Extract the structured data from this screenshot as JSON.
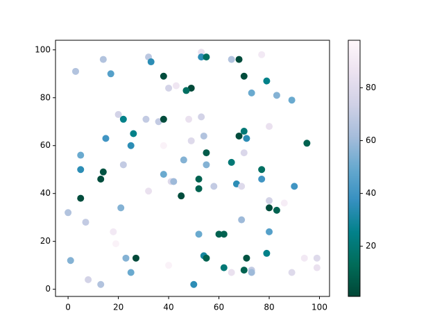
{
  "chart_data": {
    "type": "scatter",
    "x": [
      53,
      53,
      55,
      68,
      65,
      77,
      14,
      32,
      33,
      3,
      17,
      38,
      70,
      79,
      43,
      40,
      49,
      47,
      73,
      83,
      89,
      20,
      22,
      31,
      36,
      38,
      48,
      53,
      80,
      26,
      68,
      70,
      71,
      15,
      25,
      38,
      49,
      54,
      95,
      55,
      70,
      5,
      46,
      65,
      55,
      22,
      5,
      77,
      14,
      38,
      13,
      52,
      77,
      41,
      42,
      67,
      58,
      69,
      90,
      52,
      32,
      45,
      5,
      80,
      86,
      21,
      80,
      83,
      0,
      69,
      7,
      18,
      52,
      60,
      62,
      80,
      19,
      79,
      54,
      55,
      23,
      27,
      71,
      94,
      99,
      1,
      40,
      62,
      99,
      73,
      25,
      65,
      70,
      73,
      89,
      8,
      13,
      50
    ],
    "values": [
      99,
      97,
      97,
      96,
      96,
      98,
      96,
      97,
      95,
      91,
      90,
      89,
      89,
      87,
      85,
      84,
      84,
      83,
      82,
      81,
      79,
      73,
      71,
      71,
      70,
      71,
      71,
      72,
      68,
      65,
      64,
      66,
      63,
      63,
      60,
      60,
      62,
      64,
      61,
      57,
      57,
      56,
      54,
      53,
      52,
      52,
      50,
      50,
      49,
      48,
      46,
      46,
      46,
      45,
      45,
      44,
      43,
      43,
      43,
      42,
      41,
      39,
      38,
      37,
      36,
      34,
      34,
      33,
      32,
      29,
      28,
      24,
      23,
      23,
      23,
      24,
      19,
      15,
      14,
      13,
      13,
      13,
      13,
      13,
      13,
      12,
      10,
      9,
      9,
      8,
      7,
      7,
      8,
      7,
      7,
      4,
      2,
      2
    ],
    "c": [
      85,
      35,
      15,
      3,
      65,
      90,
      65,
      68,
      35,
      65,
      45,
      3,
      3,
      25,
      88,
      75,
      2,
      15,
      50,
      55,
      50,
      75,
      25,
      70,
      70,
      3,
      85,
      75,
      85,
      25,
      3,
      20,
      35,
      40,
      35,
      95,
      80,
      65,
      10,
      8,
      78,
      50,
      55,
      20,
      55,
      70,
      35,
      15,
      5,
      50,
      3,
      10,
      40,
      80,
      60,
      35,
      70,
      80,
      40,
      10,
      85,
      3,
      3,
      75,
      92,
      55,
      3,
      10,
      65,
      60,
      70,
      90,
      50,
      10,
      10,
      45,
      95,
      25,
      30,
      10,
      55,
      2,
      5,
      90,
      80,
      55,
      95,
      20,
      85,
      70,
      50,
      85,
      10,
      60,
      80,
      75,
      65,
      35
    ],
    "xlim": [
      -5,
      104
    ],
    "ylim": [
      -3,
      104
    ],
    "xticks": [
      0,
      20,
      40,
      60,
      80,
      100
    ],
    "yticks": [
      0,
      20,
      40,
      60,
      80,
      100
    ],
    "clim": [
      1,
      98
    ],
    "cticks": [
      20,
      40,
      60,
      80
    ],
    "colormap": [
      "#014636",
      "#016c59",
      "#02818a",
      "#3690c0",
      "#67a9cf",
      "#a6bddb",
      "#d0d1e6",
      "#ece2f0",
      "#fff7fb"
    ]
  }
}
